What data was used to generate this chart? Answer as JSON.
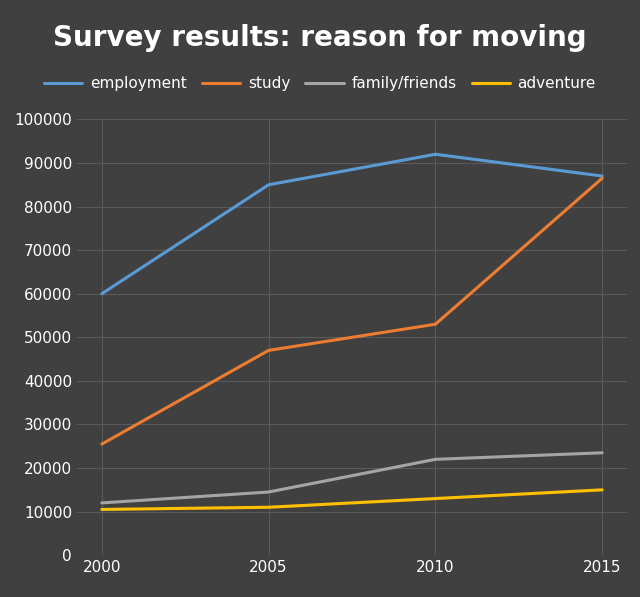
{
  "title": "Survey results: reason for moving",
  "years": [
    2000,
    2005,
    2010,
    2015
  ],
  "series": [
    {
      "label": "employment",
      "color": "#5b9bd5",
      "values": [
        60000,
        85000,
        92000,
        87000
      ]
    },
    {
      "label": "study",
      "color": "#ed7d31",
      "values": [
        25500,
        47000,
        53000,
        86500
      ]
    },
    {
      "label": "family/friends",
      "color": "#a5a5a5",
      "values": [
        12000,
        14500,
        22000,
        23500
      ]
    },
    {
      "label": "adventure",
      "color": "#ffc000",
      "values": [
        10500,
        11000,
        13000,
        15000
      ]
    }
  ],
  "ylim": [
    0,
    100000
  ],
  "yticks": [
    0,
    10000,
    20000,
    30000,
    40000,
    50000,
    60000,
    70000,
    80000,
    90000,
    100000
  ],
  "xticks": [
    2000,
    2005,
    2010,
    2015
  ],
  "background_color": "#404040",
  "plot_bg_color": "#404040",
  "grid_color": "#5a5a5a",
  "text_color": "#ffffff",
  "title_fontsize": 20,
  "legend_fontsize": 11,
  "tick_fontsize": 11,
  "line_width": 2.2
}
